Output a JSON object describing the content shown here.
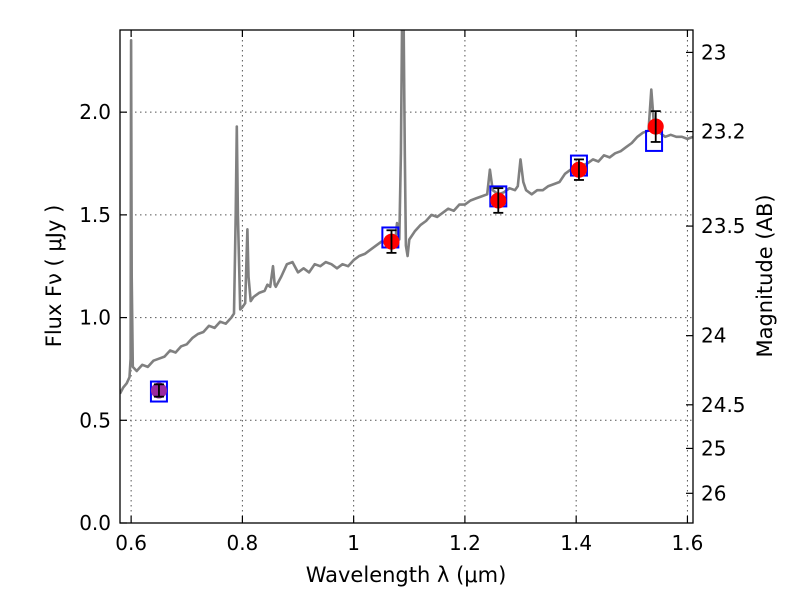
{
  "chart_data": {
    "type": "scatter",
    "title": "",
    "xlabel": "Wavelength  λ (μm)",
    "ylabel": "Flux  Fν  ( μJy )",
    "y2label": "Magnitude (AB)",
    "xlim": [
      0.58,
      1.61
    ],
    "ylim": [
      0.0,
      2.4
    ],
    "grid": true,
    "x_ticks": [
      {
        "value": 0.6,
        "label": "0.6"
      },
      {
        "value": 0.8,
        "label": "0.8"
      },
      {
        "value": 1.0,
        "label": "1"
      },
      {
        "value": 1.2,
        "label": "1.2"
      },
      {
        "value": 1.4,
        "label": "1.4"
      },
      {
        "value": 1.6,
        "label": "1.6"
      }
    ],
    "y_ticks": [
      {
        "value": 0.0,
        "label": "0.0"
      },
      {
        "value": 0.5,
        "label": "0.5"
      },
      {
        "value": 1.0,
        "label": "1.0"
      },
      {
        "value": 1.5,
        "label": "1.5"
      },
      {
        "value": 2.0,
        "label": "2.0"
      }
    ],
    "y2_ticks": [
      {
        "value": 23,
        "label": "23"
      },
      {
        "value": 23.2,
        "label": "23.2"
      },
      {
        "value": 23.5,
        "label": "23.5"
      },
      {
        "value": 24,
        "label": "24"
      },
      {
        "value": 24.5,
        "label": "24.5"
      },
      {
        "value": 25,
        "label": "25"
      },
      {
        "value": 26,
        "label": "26"
      }
    ],
    "series": [
      {
        "type": "line",
        "color": "#808080",
        "points": [
          [
            0.58,
            0.63
          ],
          [
            0.586,
            0.66
          ],
          [
            0.592,
            0.68
          ],
          [
            0.597,
            0.71
          ],
          [
            0.599,
            0.8
          ],
          [
            0.6,
            2.35
          ],
          [
            0.601,
            1.2
          ],
          [
            0.603,
            0.76
          ],
          [
            0.61,
            0.74
          ],
          [
            0.62,
            0.77
          ],
          [
            0.63,
            0.76
          ],
          [
            0.64,
            0.79
          ],
          [
            0.65,
            0.8
          ],
          [
            0.66,
            0.81
          ],
          [
            0.67,
            0.84
          ],
          [
            0.68,
            0.83
          ],
          [
            0.69,
            0.86
          ],
          [
            0.7,
            0.87
          ],
          [
            0.71,
            0.9
          ],
          [
            0.72,
            0.92
          ],
          [
            0.73,
            0.93
          ],
          [
            0.74,
            0.96
          ],
          [
            0.75,
            0.95
          ],
          [
            0.76,
            0.98
          ],
          [
            0.77,
            0.97
          ],
          [
            0.78,
            1.0
          ],
          [
            0.785,
            1.02
          ],
          [
            0.788,
            1.5
          ],
          [
            0.79,
            1.93
          ],
          [
            0.792,
            1.5
          ],
          [
            0.796,
            1.04
          ],
          [
            0.8,
            1.05
          ],
          [
            0.805,
            1.07
          ],
          [
            0.807,
            1.25
          ],
          [
            0.809,
            1.43
          ],
          [
            0.811,
            1.2
          ],
          [
            0.815,
            1.08
          ],
          [
            0.82,
            1.1
          ],
          [
            0.83,
            1.12
          ],
          [
            0.84,
            1.13
          ],
          [
            0.845,
            1.16
          ],
          [
            0.85,
            1.15
          ],
          [
            0.855,
            1.25
          ],
          [
            0.858,
            1.16
          ],
          [
            0.86,
            1.15
          ],
          [
            0.87,
            1.2
          ],
          [
            0.88,
            1.26
          ],
          [
            0.89,
            1.27
          ],
          [
            0.9,
            1.22
          ],
          [
            0.91,
            1.24
          ],
          [
            0.92,
            1.22
          ],
          [
            0.93,
            1.26
          ],
          [
            0.94,
            1.25
          ],
          [
            0.95,
            1.27
          ],
          [
            0.96,
            1.26
          ],
          [
            0.97,
            1.24
          ],
          [
            0.98,
            1.26
          ],
          [
            0.99,
            1.25
          ],
          [
            1.0,
            1.28
          ],
          [
            1.01,
            1.3
          ],
          [
            1.02,
            1.31
          ],
          [
            1.03,
            1.33
          ],
          [
            1.04,
            1.35
          ],
          [
            1.05,
            1.37
          ],
          [
            1.06,
            1.36
          ],
          [
            1.07,
            1.4
          ],
          [
            1.075,
            1.38
          ],
          [
            1.078,
            1.46
          ],
          [
            1.082,
            1.38
          ],
          [
            1.085,
            1.8
          ],
          [
            1.087,
            2.4
          ],
          [
            1.09,
            2.4
          ],
          [
            1.092,
            1.8
          ],
          [
            1.094,
            1.35
          ],
          [
            1.097,
            1.3
          ],
          [
            1.1,
            1.38
          ],
          [
            1.11,
            1.42
          ],
          [
            1.12,
            1.45
          ],
          [
            1.13,
            1.47
          ],
          [
            1.14,
            1.5
          ],
          [
            1.15,
            1.49
          ],
          [
            1.16,
            1.51
          ],
          [
            1.17,
            1.53
          ],
          [
            1.18,
            1.52
          ],
          [
            1.19,
            1.55
          ],
          [
            1.2,
            1.55
          ],
          [
            1.21,
            1.57
          ],
          [
            1.22,
            1.58
          ],
          [
            1.23,
            1.59
          ],
          [
            1.24,
            1.6
          ],
          [
            1.245,
            1.72
          ],
          [
            1.25,
            1.62
          ],
          [
            1.26,
            1.6
          ],
          [
            1.27,
            1.61
          ],
          [
            1.28,
            1.63
          ],
          [
            1.29,
            1.62
          ],
          [
            1.295,
            1.64
          ],
          [
            1.3,
            1.77
          ],
          [
            1.305,
            1.66
          ],
          [
            1.31,
            1.62
          ],
          [
            1.32,
            1.6
          ],
          [
            1.33,
            1.62
          ],
          [
            1.34,
            1.62
          ],
          [
            1.35,
            1.64
          ],
          [
            1.36,
            1.65
          ],
          [
            1.37,
            1.66
          ],
          [
            1.38,
            1.7
          ],
          [
            1.39,
            1.72
          ],
          [
            1.4,
            1.73
          ],
          [
            1.41,
            1.74
          ],
          [
            1.42,
            1.75
          ],
          [
            1.43,
            1.77
          ],
          [
            1.44,
            1.76
          ],
          [
            1.45,
            1.79
          ],
          [
            1.46,
            1.78
          ],
          [
            1.47,
            1.8
          ],
          [
            1.48,
            1.81
          ],
          [
            1.49,
            1.83
          ],
          [
            1.5,
            1.85
          ],
          [
            1.51,
            1.88
          ],
          [
            1.52,
            1.9
          ],
          [
            1.53,
            1.91
          ],
          [
            1.535,
            2.11
          ],
          [
            1.54,
            1.93
          ],
          [
            1.55,
            1.9
          ],
          [
            1.56,
            1.88
          ],
          [
            1.57,
            1.89
          ],
          [
            1.58,
            1.88
          ],
          [
            1.59,
            1.88
          ],
          [
            1.6,
            1.87
          ],
          [
            1.61,
            1.88
          ]
        ]
      },
      {
        "type": "scatter",
        "marker": "square",
        "color": "#0000ff",
        "points": [
          [
            0.65,
            0.64
          ],
          [
            1.066,
            1.39
          ],
          [
            1.26,
            1.59
          ],
          [
            1.405,
            1.74
          ],
          [
            1.54,
            1.86
          ]
        ]
      },
      {
        "type": "scatter",
        "marker": "circle",
        "color": "#ff0000",
        "points": [
          {
            "x": 0.65,
            "y": 0.645,
            "err": 0.03,
            "color": "#9a2aa0"
          },
          {
            "x": 1.068,
            "y": 1.37,
            "err": 0.055
          },
          {
            "x": 1.26,
            "y": 1.57,
            "err": 0.06
          },
          {
            "x": 1.405,
            "y": 1.72,
            "err": 0.05
          },
          {
            "x": 1.543,
            "y": 1.93,
            "err": 0.075
          }
        ]
      }
    ]
  }
}
